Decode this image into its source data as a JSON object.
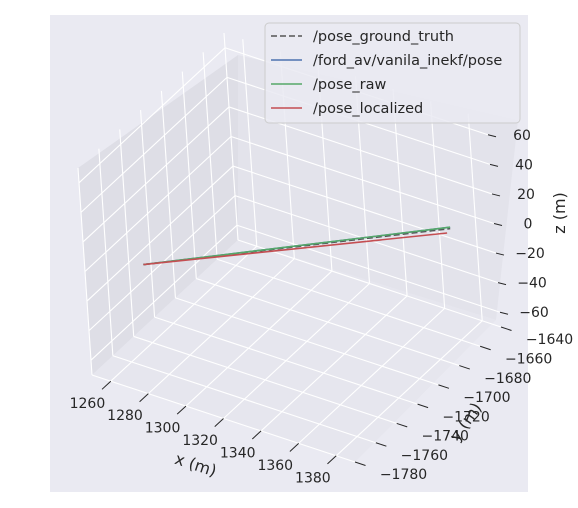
{
  "chart_data": {
    "type": "line3d",
    "title": "",
    "xlabel": "x (m)",
    "ylabel": "y (m)",
    "zlabel": "z (m)",
    "xlim": [
      1250,
      1390
    ],
    "ylim": [
      -1780,
      -1640
    ],
    "zlim": [
      -70,
      70
    ],
    "x_ticks": [
      "1260",
      "1280",
      "1300",
      "1320",
      "1340",
      "1360",
      "1380"
    ],
    "y_ticks": [
      "−1640",
      "−1660",
      "−1680",
      "−1700",
      "−1720",
      "−1740",
      "−1760",
      "−1780"
    ],
    "z_ticks": [
      "60",
      "40",
      "20",
      "0",
      "−20",
      "−40",
      "−60"
    ],
    "grid": true,
    "legend_position": "top-right",
    "series": [
      {
        "name": "/pose_ground_truth",
        "color": "#555555",
        "dashed": true,
        "x": [
          1270,
          1375
        ],
        "y": [
          -1760,
          -1655
        ],
        "z": [
          0,
          0
        ]
      },
      {
        "name": "/ford_av/vanila_inekf/pose",
        "color": "#4c72b0",
        "dashed": false,
        "x": [
          1270,
          1375
        ],
        "y": [
          -1760,
          -1655
        ],
        "z": [
          0,
          1
        ]
      },
      {
        "name": "/pose_raw",
        "color": "#55a868",
        "dashed": false,
        "x": [
          1270,
          1375
        ],
        "y": [
          -1760,
          -1655
        ],
        "z": [
          0,
          1
        ]
      },
      {
        "name": "/pose_localized",
        "color": "#c44e52",
        "dashed": false,
        "x": [
          1270,
          1375
        ],
        "y": [
          -1760,
          -1658
        ],
        "z": [
          0,
          -1
        ]
      }
    ]
  }
}
